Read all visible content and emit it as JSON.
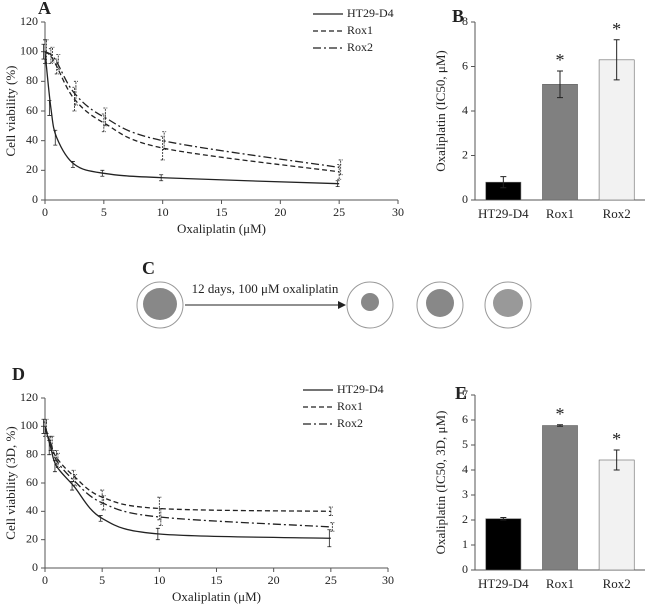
{
  "chart_data": [
    {
      "type": "line",
      "panel": "A",
      "x_label": "Oxaliplatin (μM)",
      "y_label": "Cell viability (%)",
      "x": [
        0,
        0.5,
        1,
        2.5,
        5,
        10,
        25
      ],
      "series": [
        {
          "name": "HT29-D4",
          "color": "#222222",
          "dash": "solid",
          "values": [
            100,
            62,
            42,
            24,
            18,
            15,
            11
          ],
          "errors": [
            5,
            5,
            5,
            2,
            2,
            2,
            2
          ]
        },
        {
          "name": "Rox1",
          "color": "#222222",
          "dash": "dashed",
          "values": [
            100,
            97,
            90,
            68,
            52,
            35,
            19
          ],
          "errors": [
            8,
            5,
            5,
            8,
            6,
            8,
            5
          ]
        },
        {
          "name": "Rox2",
          "color": "#222222",
          "dash": "dashdot",
          "values": [
            100,
            98,
            93,
            72,
            56,
            40,
            22
          ],
          "errors": [
            8,
            5,
            5,
            8,
            6,
            6,
            5
          ]
        }
      ],
      "xlim": [
        0,
        30
      ],
      "xticks": [
        0,
        5,
        10,
        15,
        20,
        25,
        30
      ],
      "ylim": [
        0,
        120
      ],
      "yticks": [
        0,
        20,
        40,
        60,
        80,
        100,
        120
      ],
      "legend": "upper right"
    },
    {
      "type": "bar",
      "panel": "B",
      "y_label": "Oxaliplatin (IC50, μM)",
      "categories": [
        "HT29-D4",
        "Rox1",
        "Rox2"
      ],
      "values": [
        0.8,
        5.2,
        6.3
      ],
      "errors": [
        0.25,
        0.6,
        0.9
      ],
      "colors": [
        "#000000",
        "#808080",
        "#f2f2f2"
      ],
      "annotations": [
        null,
        "*",
        "*"
      ],
      "ylim": [
        0,
        8
      ],
      "yticks": [
        0,
        2,
        4,
        6,
        8
      ]
    },
    {
      "type": "line",
      "panel": "D",
      "x_label": "Oxaliplatin (μM)",
      "y_label": "Cell viability (3D, %)",
      "x": [
        0,
        0.5,
        1,
        2.5,
        5,
        10,
        25
      ],
      "series": [
        {
          "name": "HT29-D4",
          "color": "#222222",
          "dash": "solid",
          "values": [
            100,
            85,
            72,
            58,
            35,
            24,
            21
          ],
          "errors": [
            5,
            5,
            4,
            3,
            2,
            4,
            6
          ]
        },
        {
          "name": "Rox1",
          "color": "#222222",
          "dash": "dashed",
          "values": [
            98,
            88,
            78,
            65,
            50,
            42,
            40
          ],
          "errors": [
            5,
            5,
            5,
            4,
            5,
            8,
            3
          ]
        },
        {
          "name": "Rox2",
          "color": "#222222",
          "dash": "dashdot",
          "values": [
            100,
            88,
            76,
            62,
            46,
            36,
            29
          ],
          "errors": [
            5,
            5,
            5,
            4,
            5,
            6,
            3
          ]
        }
      ],
      "xlim": [
        0,
        30
      ],
      "xticks": [
        0,
        5,
        10,
        15,
        20,
        25,
        30
      ],
      "ylim": [
        0,
        120
      ],
      "yticks": [
        0,
        20,
        40,
        60,
        80,
        100,
        120
      ],
      "legend": "upper right"
    },
    {
      "type": "bar",
      "panel": "E",
      "y_label": "Oxaliplatin (IC50, 3D, μM)",
      "categories": [
        "HT29-D4",
        "Rox1",
        "Rox2"
      ],
      "values": [
        2.05,
        5.78,
        4.4
      ],
      "errors": [
        0.05,
        0.03,
        0.4
      ],
      "colors": [
        "#000000",
        "#808080",
        "#f2f2f2"
      ],
      "annotations": [
        null,
        "*",
        "*"
      ],
      "ylim": [
        0,
        7
      ],
      "yticks": [
        0,
        1,
        2,
        3,
        4,
        5,
        6,
        7
      ]
    }
  ],
  "diagram": {
    "panel": "C",
    "label": "12 days, 100 μM oxaliplatin"
  }
}
